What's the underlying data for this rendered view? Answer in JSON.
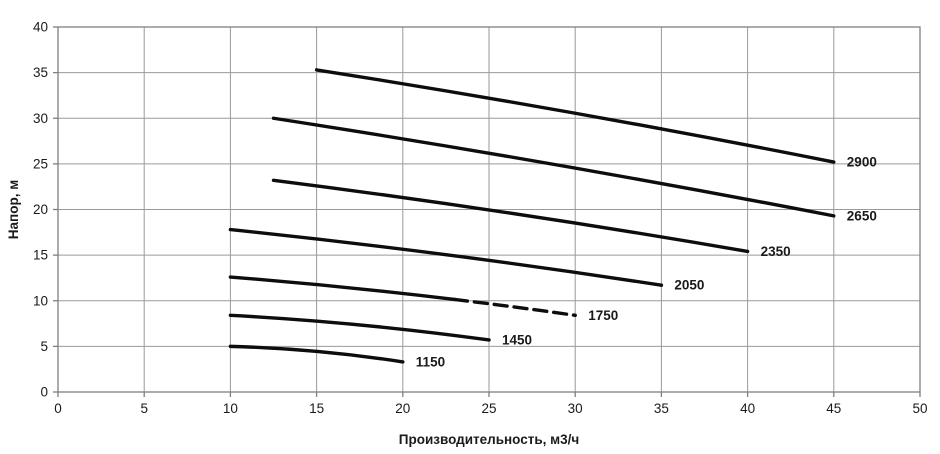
{
  "chart_data": {
    "type": "line",
    "title": "",
    "xlabel": "Производительность, м3/ч",
    "ylabel": "Напор, м",
    "xlim": [
      0,
      50
    ],
    "ylim": [
      0,
      40
    ],
    "xticks": [
      0,
      5,
      10,
      15,
      20,
      25,
      30,
      35,
      40,
      45,
      50
    ],
    "yticks": [
      0,
      5,
      10,
      15,
      20,
      25,
      30,
      35,
      40
    ],
    "grid": true,
    "legend_position": "inline-end-labels",
    "colors": {
      "line": "#0d0d0d",
      "grid": "#9a9a9a",
      "border": "#808080",
      "text": "#1a1a1a",
      "background": "#ffffff"
    },
    "series": [
      {
        "name": "1150",
        "points": [
          [
            10,
            5.0
          ],
          [
            20,
            3.3
          ]
        ]
      },
      {
        "name": "1450",
        "points": [
          [
            10,
            8.4
          ],
          [
            25,
            5.7
          ]
        ]
      },
      {
        "name": "1750",
        "points": [
          [
            10,
            12.6
          ],
          [
            30,
            8.4
          ]
        ],
        "dash_from": 23
      },
      {
        "name": "2050",
        "points": [
          [
            10,
            17.8
          ],
          [
            35,
            11.7
          ]
        ]
      },
      {
        "name": "2350",
        "points": [
          [
            12.5,
            23.2
          ],
          [
            40,
            15.4
          ]
        ]
      },
      {
        "name": "2650",
        "points": [
          [
            12.5,
            30.0
          ],
          [
            45,
            19.3
          ]
        ]
      },
      {
        "name": "2900",
        "points": [
          [
            15,
            35.3
          ],
          [
            45,
            25.2
          ]
        ]
      }
    ]
  }
}
